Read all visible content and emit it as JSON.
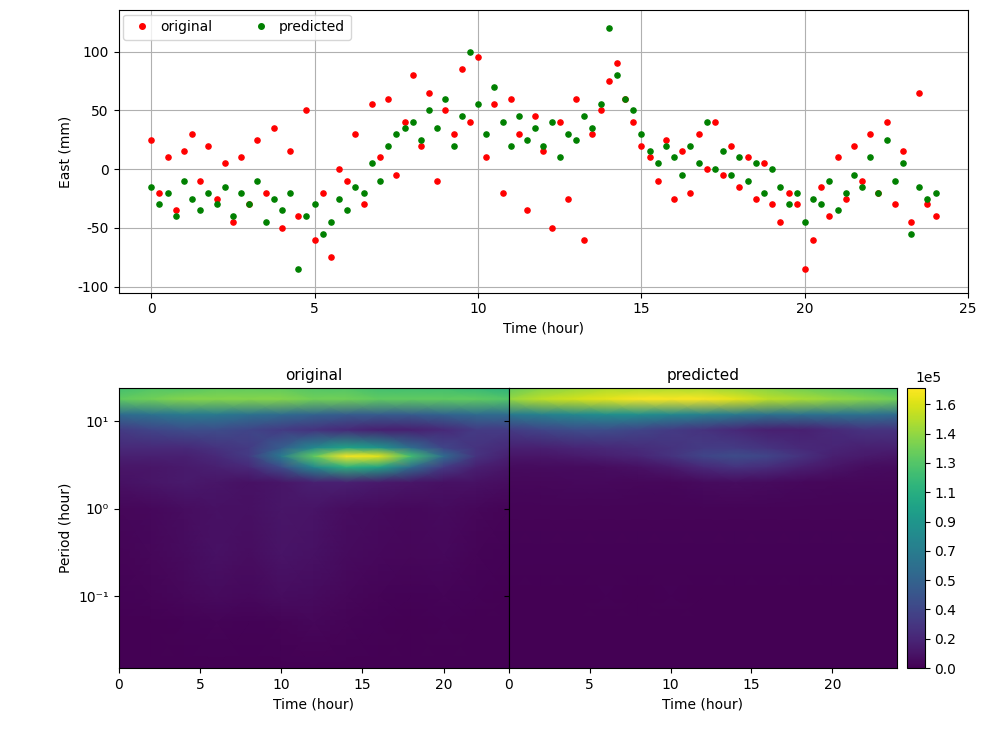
{
  "chart_data": [
    {
      "type": "scatter",
      "xlabel": "Time (hour)",
      "ylabel": "East (mm)",
      "xlim": [
        -1,
        25
      ],
      "xticks": [
        0,
        5,
        10,
        15,
        20,
        25
      ],
      "ylim": [
        -105,
        135
      ],
      "yticks": [
        -100,
        -50,
        0,
        50,
        100
      ],
      "grid": true,
      "legend": "upper left",
      "marker": "o",
      "x": [
        0,
        0.25,
        0.5,
        0.75,
        1,
        1.25,
        1.5,
        1.75,
        2,
        2.25,
        2.5,
        2.75,
        3,
        3.25,
        3.5,
        3.75,
        4,
        4.25,
        4.5,
        4.75,
        5,
        5.25,
        5.5,
        5.75,
        6,
        6.25,
        6.5,
        6.75,
        7,
        7.25,
        7.5,
        7.75,
        8,
        8.25,
        8.5,
        8.75,
        9,
        9.25,
        9.5,
        9.75,
        10,
        10.25,
        10.5,
        10.75,
        11,
        11.25,
        11.5,
        11.75,
        12,
        12.25,
        12.5,
        12.75,
        13,
        13.25,
        13.5,
        13.75,
        14,
        14.25,
        14.5,
        14.75,
        15,
        15.25,
        15.5,
        15.75,
        16,
        16.25,
        16.5,
        16.75,
        17,
        17.25,
        17.5,
        17.75,
        18,
        18.25,
        18.5,
        18.75,
        19,
        19.25,
        19.5,
        19.75,
        20,
        20.25,
        20.5,
        20.75,
        21,
        21.25,
        21.5,
        21.75,
        22,
        22.25,
        22.5,
        22.75,
        23,
        23.25,
        23.5,
        23.75,
        24
      ],
      "series": [
        {
          "name": "original",
          "color": "red",
          "values": [
            25,
            -20,
            10,
            -35,
            15,
            30,
            -10,
            20,
            -25,
            5,
            -45,
            10,
            -30,
            25,
            -20,
            35,
            -50,
            15,
            -40,
            50,
            -60,
            -20,
            -75,
            0,
            -10,
            30,
            -30,
            55,
            10,
            60,
            -5,
            40,
            80,
            20,
            65,
            -10,
            50,
            30,
            85,
            40,
            95,
            10,
            55,
            -20,
            60,
            30,
            -35,
            45,
            15,
            -50,
            40,
            -25,
            60,
            -60,
            30,
            50,
            75,
            90,
            60,
            40,
            20,
            10,
            -10,
            25,
            -25,
            15,
            -20,
            30,
            0,
            40,
            -5,
            20,
            -15,
            10,
            -25,
            5,
            -30,
            -45,
            -20,
            -30,
            -85,
            -60,
            -15,
            -40,
            10,
            -25,
            20,
            -10,
            30,
            -20,
            40,
            -30,
            15,
            -45,
            65,
            -30,
            -40
          ]
        },
        {
          "name": "predicted",
          "color": "green",
          "values": [
            -15,
            -30,
            -20,
            -40,
            -10,
            -25,
            -35,
            -20,
            -30,
            -15,
            -40,
            -20,
            -30,
            -10,
            -45,
            -25,
            -35,
            -20,
            -85,
            -40,
            -30,
            -55,
            -45,
            -25,
            -35,
            -15,
            -20,
            5,
            -10,
            20,
            30,
            35,
            40,
            25,
            50,
            35,
            60,
            20,
            45,
            100,
            55,
            30,
            70,
            40,
            20,
            45,
            25,
            35,
            20,
            40,
            10,
            30,
            25,
            45,
            35,
            55,
            120,
            80,
            60,
            50,
            30,
            15,
            5,
            20,
            10,
            -5,
            20,
            5,
            40,
            0,
            15,
            -5,
            10,
            -10,
            5,
            -20,
            0,
            -15,
            -30,
            -20,
            -45,
            -25,
            -30,
            -10,
            -35,
            -20,
            -5,
            -15,
            10,
            -20,
            25,
            -10,
            5,
            -55,
            -15,
            -25,
            -20
          ]
        }
      ]
    },
    {
      "type": "heatmap",
      "title": "original",
      "xlabel": "Time (hour)",
      "ylabel": "Period (hour)",
      "log": "y",
      "xlim": [
        0,
        24
      ],
      "xticks": [
        0,
        5,
        10,
        15,
        20
      ],
      "ylim": [
        0.015,
        24
      ],
      "yticks": [
        {
          "value": 0.1,
          "label": "10⁻¹"
        },
        {
          "value": 1,
          "label": "10⁰"
        },
        {
          "value": 10,
          "label": "10¹"
        }
      ],
      "x": [
        0,
        2,
        4,
        6,
        8,
        10,
        12,
        14,
        16,
        18,
        20,
        22,
        24
      ],
      "periods": [
        0.015,
        0.05,
        0.1,
        0.3,
        1,
        2,
        3,
        4,
        5,
        8,
        12,
        18,
        24
      ],
      "cells": [
        [
          0,
          0,
          0,
          0,
          0,
          0,
          0,
          0,
          0,
          0,
          0,
          0,
          0
        ],
        [
          0,
          0,
          1000,
          2000,
          1000,
          2000,
          3000,
          2000,
          1000,
          0,
          1000,
          0,
          0
        ],
        [
          1000,
          2000,
          3000,
          5000,
          4000,
          6000,
          5000,
          3000,
          2000,
          1000,
          2000,
          1000,
          0
        ],
        [
          2000,
          3000,
          5000,
          8000,
          6000,
          9000,
          8000,
          5000,
          4000,
          3000,
          4000,
          2000,
          1000
        ],
        [
          3000,
          4000,
          6000,
          8000,
          7000,
          10000,
          9000,
          6000,
          5000,
          4000,
          5000,
          3000,
          2000
        ],
        [
          8000,
          10000,
          12000,
          10000,
          8000,
          10000,
          15000,
          15000,
          12000,
          10000,
          8000,
          8000,
          6000
        ],
        [
          10000,
          10000,
          12000,
          15000,
          20000,
          40000,
          80000,
          110000,
          100000,
          60000,
          30000,
          15000,
          10000
        ],
        [
          15000,
          15000,
          15000,
          20000,
          30000,
          70000,
          130000,
          170000,
          165000,
          120000,
          60000,
          25000,
          15000
        ],
        [
          20000,
          20000,
          20000,
          25000,
          30000,
          50000,
          80000,
          100000,
          90000,
          60000,
          35000,
          25000,
          20000
        ],
        [
          30000,
          35000,
          40000,
          40000,
          35000,
          30000,
          25000,
          20000,
          15000,
          15000,
          20000,
          30000,
          30000
        ],
        [
          60000,
          65000,
          70000,
          70000,
          65000,
          60000,
          55000,
          50000,
          50000,
          50000,
          55000,
          60000,
          60000
        ],
        [
          130000,
          135000,
          140000,
          140000,
          140000,
          140000,
          135000,
          135000,
          130000,
          130000,
          130000,
          130000,
          125000
        ],
        [
          120000,
          125000,
          125000,
          130000,
          130000,
          130000,
          125000,
          125000,
          120000,
          120000,
          120000,
          115000,
          110000
        ]
      ]
    },
    {
      "type": "heatmap",
      "title": "predicted",
      "xlabel": "Time (hour)",
      "log": "y",
      "xlim": [
        0,
        24
      ],
      "xticks": [
        0,
        5,
        10,
        15,
        20
      ],
      "ylim": [
        0.015,
        24
      ],
      "x": [
        0,
        2,
        4,
        6,
        8,
        10,
        12,
        14,
        16,
        18,
        20,
        22,
        24
      ],
      "periods": [
        0.015,
        0.05,
        0.1,
        0.3,
        1,
        2,
        3,
        4,
        5,
        8,
        12,
        18,
        24
      ],
      "cells": [
        [
          0,
          0,
          0,
          0,
          0,
          0,
          0,
          0,
          0,
          0,
          0,
          0,
          0
        ],
        [
          0,
          0,
          0,
          0,
          0,
          0,
          0,
          0,
          0,
          0,
          0,
          0,
          0
        ],
        [
          0,
          0,
          0,
          1000,
          0,
          1000,
          0,
          0,
          0,
          0,
          0,
          0,
          0
        ],
        [
          1000,
          1000,
          1000,
          1000,
          1000,
          1000,
          1000,
          1000,
          1000,
          1000,
          1000,
          1000,
          1000
        ],
        [
          2000,
          2000,
          2000,
          2000,
          2000,
          2000,
          2000,
          2000,
          2000,
          2000,
          2000,
          2000,
          2000
        ],
        [
          3000,
          3000,
          4000,
          4000,
          3000,
          3000,
          5000,
          6000,
          5000,
          4000,
          3000,
          3000,
          3000
        ],
        [
          5000,
          5000,
          5000,
          6000,
          8000,
          12000,
          20000,
          25000,
          22000,
          15000,
          10000,
          6000,
          5000
        ],
        [
          10000,
          10000,
          12000,
          15000,
          18000,
          25000,
          35000,
          40000,
          35000,
          25000,
          15000,
          12000,
          10000
        ],
        [
          15000,
          15000,
          18000,
          20000,
          22000,
          25000,
          30000,
          30000,
          25000,
          20000,
          18000,
          15000,
          15000
        ],
        [
          30000,
          35000,
          40000,
          40000,
          35000,
          30000,
          25000,
          20000,
          15000,
          15000,
          20000,
          25000,
          25000
        ],
        [
          70000,
          75000,
          80000,
          85000,
          85000,
          80000,
          75000,
          70000,
          65000,
          65000,
          65000,
          65000,
          60000
        ],
        [
          145000,
          155000,
          160000,
          165000,
          170000,
          170000,
          170000,
          165000,
          155000,
          150000,
          145000,
          140000,
          135000
        ],
        [
          130000,
          140000,
          145000,
          150000,
          150000,
          150000,
          150000,
          145000,
          140000,
          135000,
          130000,
          125000,
          120000
        ]
      ],
      "colorbar_lim": [
        0,
        172000
      ],
      "colorbar_ticks": [
        {
          "value": 0,
          "label": "0.0"
        },
        {
          "value": 18000,
          "label": "0.2"
        },
        {
          "value": 36000,
          "label": "0.4"
        },
        {
          "value": 54000,
          "label": "0.5"
        },
        {
          "value": 72000,
          "label": "0.7"
        },
        {
          "value": 90000,
          "label": "0.9"
        },
        {
          "value": 108000,
          "label": "1.1"
        },
        {
          "value": 126000,
          "label": "1.3"
        },
        {
          "value": 144000,
          "label": "1.4"
        },
        {
          "value": 162000,
          "label": "1.6"
        }
      ],
      "colorbar_label": "1e5"
    }
  ]
}
